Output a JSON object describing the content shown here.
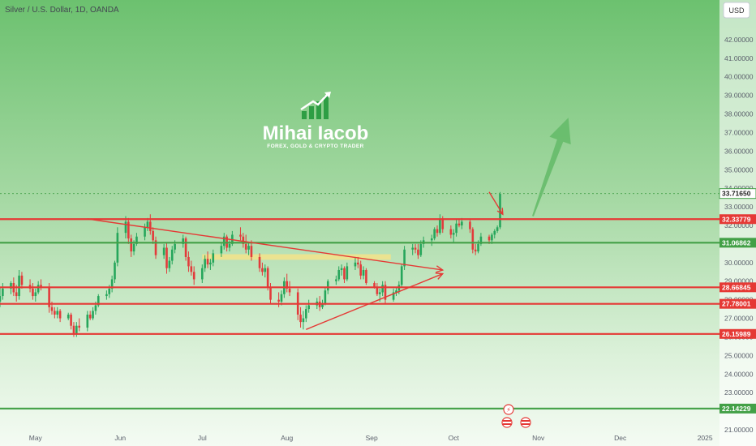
{
  "header": {
    "title": "Silver / U.S. Dollar, 1D, OANDA",
    "currency_button": "USD"
  },
  "watermark": {
    "name": "Mihai Iacob",
    "tagline": "FOREX, GOLD & CRYPTO TRADER"
  },
  "chart_data": {
    "type": "candlestick",
    "symbol": "Silver / U.S. Dollar",
    "interval": "1D",
    "exchange": "OANDA",
    "currency": "USD",
    "ylim": [
      21.0,
      43.0
    ],
    "xlim": [
      "2024-04-18",
      "2025-01-06"
    ],
    "y_ticks": [
      "21.00000",
      "23.00000",
      "24.00000",
      "25.00000",
      "26.00000",
      "27.00000",
      "28.00000",
      "29.00000",
      "30.00000",
      "31.00000",
      "32.00000",
      "33.00000",
      "34.00000",
      "35.00000",
      "36.00000",
      "37.00000",
      "38.00000",
      "39.00000",
      "40.00000",
      "41.00000",
      "42.00000"
    ],
    "x_ticks": [
      {
        "label": "May",
        "date": "2024-05-01"
      },
      {
        "label": "Jun",
        "date": "2024-06-01"
      },
      {
        "label": "Jul",
        "date": "2024-07-01"
      },
      {
        "label": "Aug",
        "date": "2024-08-01"
      },
      {
        "label": "Sep",
        "date": "2024-09-01"
      },
      {
        "label": "Oct",
        "date": "2024-10-01"
      },
      {
        "label": "Nov",
        "date": "2024-11-01"
      },
      {
        "label": "Dec",
        "date": "2024-12-01"
      },
      {
        "label": "2025",
        "date": "2025-01-01"
      }
    ],
    "levels": [
      {
        "value": 32.33779,
        "label": "32.33779",
        "color": "#e53935"
      },
      {
        "value": 31.06862,
        "label": "31.06862",
        "color": "#43a047"
      },
      {
        "value": 28.66845,
        "label": "28.66845",
        "color": "#e53935"
      },
      {
        "value": 27.78001,
        "label": "27.78001",
        "color": "#e53935"
      },
      {
        "value": 26.15989,
        "label": "26.15989",
        "color": "#e53935"
      },
      {
        "value": 22.14229,
        "label": "22.14229",
        "color": "#43a047"
      }
    ],
    "current_price": {
      "value": 33.7165,
      "label": "33.71650"
    },
    "trendlines": [
      {
        "from": [
          "2024-05-20",
          32.35
        ],
        "to": [
          "2024-09-27",
          29.6
        ],
        "arrow": true,
        "color": "#e53935"
      },
      {
        "from": [
          "2024-08-08",
          26.4
        ],
        "to": [
          "2024-09-27",
          29.4
        ],
        "arrow": true,
        "color": "#e53935"
      }
    ],
    "zone": {
      "from": "2024-07-01",
      "to": "2024-09-08",
      "low": 30.15,
      "high": 30.45,
      "color": "#f3e38a"
    },
    "projection": {
      "from": [
        "2024-10-30",
        32.5
      ],
      "to": [
        "2024-11-12",
        37.8
      ],
      "color": "#66bb6a"
    },
    "pullback_arrow": {
      "from": [
        "2024-10-14",
        33.8
      ],
      "to": [
        "2024-10-19",
        32.6
      ],
      "color": "#e53935"
    },
    "candles": [
      {
        "d": "2024-04-18",
        "o": 27.9,
        "h": 28.7,
        "l": 27.6,
        "c": 28.2
      },
      {
        "d": "2024-04-19",
        "o": 28.2,
        "h": 28.9,
        "l": 28.0,
        "c": 28.6
      },
      {
        "d": "2024-04-22",
        "o": 28.6,
        "h": 29.0,
        "l": 28.3,
        "c": 28.9
      },
      {
        "d": "2024-04-23",
        "o": 28.9,
        "h": 29.2,
        "l": 28.2,
        "c": 28.4
      },
      {
        "d": "2024-04-24",
        "o": 28.4,
        "h": 28.8,
        "l": 27.9,
        "c": 28.2
      },
      {
        "d": "2024-04-25",
        "o": 28.2,
        "h": 29.6,
        "l": 28.0,
        "c": 29.3
      },
      {
        "d": "2024-04-26",
        "o": 29.3,
        "h": 29.5,
        "l": 28.6,
        "c": 28.8
      },
      {
        "d": "2024-04-29",
        "o": 28.8,
        "h": 29.1,
        "l": 28.4,
        "c": 28.6
      },
      {
        "d": "2024-04-30",
        "o": 28.6,
        "h": 28.9,
        "l": 28.0,
        "c": 28.2
      },
      {
        "d": "2024-05-01",
        "o": 28.2,
        "h": 28.6,
        "l": 27.9,
        "c": 28.4
      },
      {
        "d": "2024-05-02",
        "o": 28.4,
        "h": 29.0,
        "l": 28.3,
        "c": 28.8
      },
      {
        "d": "2024-05-03",
        "o": 28.8,
        "h": 29.1,
        "l": 28.5,
        "c": 28.7
      },
      {
        "d": "2024-05-06",
        "o": 28.7,
        "h": 28.9,
        "l": 27.3,
        "c": 27.6
      },
      {
        "d": "2024-05-07",
        "o": 27.6,
        "h": 27.9,
        "l": 27.2,
        "c": 27.4
      },
      {
        "d": "2024-05-08",
        "o": 27.4,
        "h": 27.6,
        "l": 27.0,
        "c": 27.2
      },
      {
        "d": "2024-05-09",
        "o": 27.2,
        "h": 27.6,
        "l": 27.0,
        "c": 27.4
      },
      {
        "d": "2024-05-10",
        "o": 27.4,
        "h": 27.5,
        "l": 26.8,
        "c": 27.0
      },
      {
        "d": "2024-05-13",
        "o": 27.0,
        "h": 27.3,
        "l": 26.9,
        "c": 27.2
      },
      {
        "d": "2024-05-14",
        "o": 27.2,
        "h": 27.3,
        "l": 26.4,
        "c": 26.6
      },
      {
        "d": "2024-05-15",
        "o": 26.6,
        "h": 26.8,
        "l": 26.0,
        "c": 26.2
      },
      {
        "d": "2024-05-16",
        "o": 26.2,
        "h": 26.8,
        "l": 26.0,
        "c": 26.6
      },
      {
        "d": "2024-05-17",
        "o": 26.6,
        "h": 27.0,
        "l": 26.3,
        "c": 26.5
      },
      {
        "d": "2024-05-20",
        "o": 26.5,
        "h": 27.4,
        "l": 26.3,
        "c": 27.2
      },
      {
        "d": "2024-05-21",
        "o": 27.2,
        "h": 27.4,
        "l": 26.9,
        "c": 27.0
      },
      {
        "d": "2024-05-22",
        "o": 27.0,
        "h": 27.6,
        "l": 26.9,
        "c": 27.4
      },
      {
        "d": "2024-05-23",
        "o": 27.4,
        "h": 27.9,
        "l": 27.2,
        "c": 27.7
      },
      {
        "d": "2024-05-24",
        "o": 27.7,
        "h": 28.3,
        "l": 27.6,
        "c": 28.2
      },
      {
        "d": "2024-05-27",
        "o": 28.2,
        "h": 28.5,
        "l": 28.0,
        "c": 28.3
      },
      {
        "d": "2024-05-28",
        "o": 28.3,
        "h": 28.8,
        "l": 28.1,
        "c": 28.6
      },
      {
        "d": "2024-05-29",
        "o": 28.6,
        "h": 29.3,
        "l": 28.4,
        "c": 29.1
      },
      {
        "d": "2024-05-30",
        "o": 29.1,
        "h": 30.1,
        "l": 28.9,
        "c": 30.0
      },
      {
        "d": "2024-05-31",
        "o": 30.0,
        "h": 31.9,
        "l": 29.8,
        "c": 31.6
      },
      {
        "d": "2024-06-03",
        "o": 31.6,
        "h": 32.5,
        "l": 31.3,
        "c": 32.2
      },
      {
        "d": "2024-06-04",
        "o": 32.2,
        "h": 32.4,
        "l": 31.0,
        "c": 31.3
      },
      {
        "d": "2024-06-05",
        "o": 31.3,
        "h": 31.5,
        "l": 30.3,
        "c": 30.6
      },
      {
        "d": "2024-06-06",
        "o": 30.6,
        "h": 31.2,
        "l": 30.4,
        "c": 31.0
      },
      {
        "d": "2024-06-07",
        "o": 31.0,
        "h": 31.6,
        "l": 30.9,
        "c": 31.4
      },
      {
        "d": "2024-06-10",
        "o": 31.4,
        "h": 32.1,
        "l": 31.2,
        "c": 31.9
      },
      {
        "d": "2024-06-11",
        "o": 31.9,
        "h": 32.4,
        "l": 31.7,
        "c": 32.2
      },
      {
        "d": "2024-06-12",
        "o": 32.2,
        "h": 32.6,
        "l": 31.5,
        "c": 31.7
      },
      {
        "d": "2024-06-13",
        "o": 31.7,
        "h": 31.9,
        "l": 31.0,
        "c": 31.2
      },
      {
        "d": "2024-06-14",
        "o": 31.2,
        "h": 31.4,
        "l": 30.2,
        "c": 30.4
      },
      {
        "d": "2024-06-17",
        "o": 30.4,
        "h": 31.0,
        "l": 30.2,
        "c": 30.8
      },
      {
        "d": "2024-06-18",
        "o": 30.8,
        "h": 31.1,
        "l": 29.4,
        "c": 29.7
      },
      {
        "d": "2024-06-19",
        "o": 29.7,
        "h": 30.3,
        "l": 29.5,
        "c": 30.1
      },
      {
        "d": "2024-06-20",
        "o": 30.1,
        "h": 30.9,
        "l": 29.9,
        "c": 30.7
      },
      {
        "d": "2024-06-21",
        "o": 30.7,
        "h": 31.2,
        "l": 30.5,
        "c": 31.0
      },
      {
        "d": "2024-06-24",
        "o": 31.0,
        "h": 31.5,
        "l": 30.8,
        "c": 31.3
      },
      {
        "d": "2024-06-25",
        "o": 31.3,
        "h": 31.4,
        "l": 30.1,
        "c": 30.3
      },
      {
        "d": "2024-06-26",
        "o": 30.3,
        "h": 30.6,
        "l": 29.5,
        "c": 29.8
      },
      {
        "d": "2024-06-27",
        "o": 29.8,
        "h": 30.1,
        "l": 29.3,
        "c": 29.5
      },
      {
        "d": "2024-06-28",
        "o": 29.5,
        "h": 29.8,
        "l": 28.8,
        "c": 29.1
      },
      {
        "d": "2024-07-01",
        "o": 29.1,
        "h": 29.9,
        "l": 28.9,
        "c": 29.7
      },
      {
        "d": "2024-07-02",
        "o": 29.7,
        "h": 30.4,
        "l": 29.5,
        "c": 30.2
      },
      {
        "d": "2024-07-03",
        "o": 30.2,
        "h": 30.6,
        "l": 29.7,
        "c": 29.9
      },
      {
        "d": "2024-07-04",
        "o": 29.9,
        "h": 30.2,
        "l": 29.6,
        "c": 30.0
      },
      {
        "d": "2024-07-05",
        "o": 30.0,
        "h": 30.7,
        "l": 29.8,
        "c": 30.5
      },
      {
        "d": "2024-07-08",
        "o": 30.5,
        "h": 31.1,
        "l": 30.3,
        "c": 30.9
      },
      {
        "d": "2024-07-09",
        "o": 30.9,
        "h": 31.6,
        "l": 30.7,
        "c": 31.4
      },
      {
        "d": "2024-07-10",
        "o": 31.4,
        "h": 31.5,
        "l": 30.6,
        "c": 30.8
      },
      {
        "d": "2024-07-11",
        "o": 30.8,
        "h": 31.2,
        "l": 30.6,
        "c": 31.0
      },
      {
        "d": "2024-07-12",
        "o": 31.0,
        "h": 31.7,
        "l": 30.9,
        "c": 31.5
      },
      {
        "d": "2024-07-15",
        "o": 31.5,
        "h": 31.9,
        "l": 31.2,
        "c": 31.4
      },
      {
        "d": "2024-07-16",
        "o": 31.4,
        "h": 31.6,
        "l": 30.8,
        "c": 31.0
      },
      {
        "d": "2024-07-17",
        "o": 31.0,
        "h": 31.5,
        "l": 30.5,
        "c": 30.7
      },
      {
        "d": "2024-07-18",
        "o": 30.7,
        "h": 31.1,
        "l": 30.4,
        "c": 30.9
      },
      {
        "d": "2024-07-19",
        "o": 30.9,
        "h": 31.2,
        "l": 30.1,
        "c": 30.3
      },
      {
        "d": "2024-07-22",
        "o": 30.3,
        "h": 30.5,
        "l": 29.5,
        "c": 29.7
      },
      {
        "d": "2024-07-23",
        "o": 29.7,
        "h": 30.0,
        "l": 29.3,
        "c": 29.5
      },
      {
        "d": "2024-07-24",
        "o": 29.5,
        "h": 29.9,
        "l": 29.2,
        "c": 29.7
      },
      {
        "d": "2024-07-25",
        "o": 29.7,
        "h": 29.8,
        "l": 28.5,
        "c": 28.7
      },
      {
        "d": "2024-07-26",
        "o": 28.7,
        "h": 28.9,
        "l": 27.8,
        "c": 28.0
      },
      {
        "d": "2024-07-29",
        "o": 28.0,
        "h": 28.4,
        "l": 27.6,
        "c": 27.9
      },
      {
        "d": "2024-07-30",
        "o": 27.9,
        "h": 28.5,
        "l": 27.7,
        "c": 28.3
      },
      {
        "d": "2024-07-31",
        "o": 28.3,
        "h": 29.2,
        "l": 28.1,
        "c": 29.0
      },
      {
        "d": "2024-08-01",
        "o": 29.0,
        "h": 29.4,
        "l": 28.4,
        "c": 28.6
      },
      {
        "d": "2024-08-02",
        "o": 28.6,
        "h": 29.0,
        "l": 28.2,
        "c": 28.4
      },
      {
        "d": "2024-08-05",
        "o": 28.4,
        "h": 28.6,
        "l": 26.9,
        "c": 27.2
      },
      {
        "d": "2024-08-06",
        "o": 27.2,
        "h": 27.6,
        "l": 26.5,
        "c": 26.8
      },
      {
        "d": "2024-08-07",
        "o": 26.8,
        "h": 27.4,
        "l": 26.4,
        "c": 27.0
      },
      {
        "d": "2024-08-08",
        "o": 27.0,
        "h": 27.7,
        "l": 26.8,
        "c": 27.5
      },
      {
        "d": "2024-08-09",
        "o": 27.5,
        "h": 28.0,
        "l": 27.3,
        "c": 27.7
      },
      {
        "d": "2024-08-12",
        "o": 27.7,
        "h": 28.1,
        "l": 27.5,
        "c": 27.9
      },
      {
        "d": "2024-08-13",
        "o": 27.9,
        "h": 28.2,
        "l": 27.4,
        "c": 27.6
      },
      {
        "d": "2024-08-14",
        "o": 27.6,
        "h": 28.0,
        "l": 27.5,
        "c": 27.8
      },
      {
        "d": "2024-08-15",
        "o": 27.8,
        "h": 28.7,
        "l": 27.7,
        "c": 28.5
      },
      {
        "d": "2024-08-16",
        "o": 28.5,
        "h": 29.1,
        "l": 28.3,
        "c": 29.0
      },
      {
        "d": "2024-08-19",
        "o": 29.0,
        "h": 29.3,
        "l": 28.8,
        "c": 29.1
      },
      {
        "d": "2024-08-20",
        "o": 29.1,
        "h": 29.8,
        "l": 29.0,
        "c": 29.6
      },
      {
        "d": "2024-08-21",
        "o": 29.6,
        "h": 29.9,
        "l": 29.3,
        "c": 29.7
      },
      {
        "d": "2024-08-22",
        "o": 29.7,
        "h": 29.8,
        "l": 28.9,
        "c": 29.1
      },
      {
        "d": "2024-08-23",
        "o": 29.1,
        "h": 30.0,
        "l": 29.0,
        "c": 29.8
      },
      {
        "d": "2024-08-26",
        "o": 29.8,
        "h": 30.3,
        "l": 29.6,
        "c": 30.0
      },
      {
        "d": "2024-08-27",
        "o": 30.0,
        "h": 30.3,
        "l": 29.7,
        "c": 29.9
      },
      {
        "d": "2024-08-28",
        "o": 29.9,
        "h": 30.1,
        "l": 29.1,
        "c": 29.3
      },
      {
        "d": "2024-08-29",
        "o": 29.3,
        "h": 29.8,
        "l": 29.1,
        "c": 29.6
      },
      {
        "d": "2024-08-30",
        "o": 29.6,
        "h": 29.7,
        "l": 28.8,
        "c": 28.9
      },
      {
        "d": "2024-09-02",
        "o": 28.9,
        "h": 29.0,
        "l": 28.6,
        "c": 28.7
      },
      {
        "d": "2024-09-03",
        "o": 28.7,
        "h": 28.9,
        "l": 28.2,
        "c": 28.3
      },
      {
        "d": "2024-09-04",
        "o": 28.3,
        "h": 28.6,
        "l": 27.9,
        "c": 28.4
      },
      {
        "d": "2024-09-05",
        "o": 28.4,
        "h": 29.0,
        "l": 28.2,
        "c": 28.8
      },
      {
        "d": "2024-09-06",
        "o": 28.8,
        "h": 29.0,
        "l": 27.8,
        "c": 28.0
      },
      {
        "d": "2024-09-09",
        "o": 28.0,
        "h": 28.6,
        "l": 27.9,
        "c": 28.4
      },
      {
        "d": "2024-09-10",
        "o": 28.4,
        "h": 28.7,
        "l": 28.2,
        "c": 28.5
      },
      {
        "d": "2024-09-11",
        "o": 28.5,
        "h": 29.0,
        "l": 28.3,
        "c": 28.8
      },
      {
        "d": "2024-09-12",
        "o": 28.8,
        "h": 29.9,
        "l": 28.7,
        "c": 29.8
      },
      {
        "d": "2024-09-13",
        "o": 29.8,
        "h": 30.9,
        "l": 29.6,
        "c": 30.7
      },
      {
        "d": "2024-09-16",
        "o": 30.7,
        "h": 31.0,
        "l": 30.4,
        "c": 30.8
      },
      {
        "d": "2024-09-17",
        "o": 30.8,
        "h": 31.0,
        "l": 30.5,
        "c": 30.7
      },
      {
        "d": "2024-09-18",
        "o": 30.7,
        "h": 31.0,
        "l": 30.2,
        "c": 30.4
      },
      {
        "d": "2024-09-19",
        "o": 30.4,
        "h": 31.2,
        "l": 30.3,
        "c": 31.0
      },
      {
        "d": "2024-09-20",
        "o": 31.0,
        "h": 31.4,
        "l": 30.8,
        "c": 31.2
      },
      {
        "d": "2024-09-23",
        "o": 31.2,
        "h": 31.5,
        "l": 30.9,
        "c": 31.3
      },
      {
        "d": "2024-09-24",
        "o": 31.3,
        "h": 31.9,
        "l": 31.2,
        "c": 31.8
      },
      {
        "d": "2024-09-25",
        "o": 31.8,
        "h": 32.0,
        "l": 31.4,
        "c": 31.6
      },
      {
        "d": "2024-09-26",
        "o": 31.6,
        "h": 32.6,
        "l": 31.5,
        "c": 32.3
      },
      {
        "d": "2024-09-27",
        "o": 32.3,
        "h": 32.5,
        "l": 31.6,
        "c": 31.8
      },
      {
        "d": "2024-09-30",
        "o": 31.8,
        "h": 32.0,
        "l": 31.3,
        "c": 31.5
      },
      {
        "d": "2024-10-01",
        "o": 31.5,
        "h": 31.8,
        "l": 31.1,
        "c": 31.6
      },
      {
        "d": "2024-10-02",
        "o": 31.6,
        "h": 32.3,
        "l": 31.4,
        "c": 32.1
      },
      {
        "d": "2024-10-03",
        "o": 32.1,
        "h": 32.3,
        "l": 31.9,
        "c": 32.0
      },
      {
        "d": "2024-10-04",
        "o": 32.0,
        "h": 32.4,
        "l": 31.8,
        "c": 32.2
      },
      {
        "d": "2024-10-07",
        "o": 32.2,
        "h": 32.3,
        "l": 31.6,
        "c": 31.8
      },
      {
        "d": "2024-10-08",
        "o": 31.8,
        "h": 31.9,
        "l": 30.5,
        "c": 30.7
      },
      {
        "d": "2024-10-09",
        "o": 30.7,
        "h": 31.0,
        "l": 30.4,
        "c": 30.6
      },
      {
        "d": "2024-10-10",
        "o": 30.6,
        "h": 31.2,
        "l": 30.5,
        "c": 31.0
      },
      {
        "d": "2024-10-11",
        "o": 31.0,
        "h": 31.6,
        "l": 30.9,
        "c": 31.4
      },
      {
        "d": "2024-10-14",
        "o": 31.4,
        "h": 31.5,
        "l": 31.0,
        "c": 31.2
      },
      {
        "d": "2024-10-15",
        "o": 31.2,
        "h": 31.6,
        "l": 31.0,
        "c": 31.5
      },
      {
        "d": "2024-10-16",
        "o": 31.5,
        "h": 31.8,
        "l": 31.3,
        "c": 31.7
      },
      {
        "d": "2024-10-17",
        "o": 31.7,
        "h": 32.0,
        "l": 31.6,
        "c": 31.9
      },
      {
        "d": "2024-10-18",
        "o": 31.9,
        "h": 33.8,
        "l": 31.8,
        "c": 33.7
      }
    ]
  }
}
